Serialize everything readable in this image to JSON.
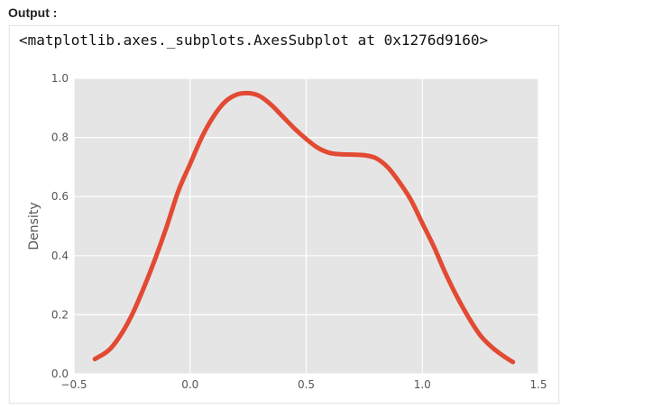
{
  "header": {
    "output_label": "Output :"
  },
  "cell": {
    "repr_text": "<matplotlib.axes._subplots.AxesSubplot at 0x1276d9160>"
  },
  "colors": {
    "plot_background": "#e5e5e5",
    "grid": "#ffffff",
    "line": "#e24a33",
    "tick_text": "#555555"
  },
  "chart_data": {
    "type": "line",
    "title": "",
    "xlabel": "",
    "ylabel": "Density",
    "xlim": [
      -0.5,
      1.5
    ],
    "ylim": [
      0.0,
      1.0
    ],
    "grid": true,
    "x_ticks": [
      -0.5,
      0.0,
      0.5,
      1.0,
      1.5
    ],
    "x_tick_labels": [
      "−0.5",
      "0.0",
      "0.5",
      "1.0",
      "1.5"
    ],
    "y_ticks": [
      0.0,
      0.2,
      0.4,
      0.6,
      0.8,
      1.0
    ],
    "y_tick_labels": [
      "0.0",
      "0.2",
      "0.4",
      "0.6",
      "0.8",
      "1.0"
    ],
    "series": [
      {
        "x": [
          -0.41,
          -0.35,
          -0.3,
          -0.25,
          -0.2,
          -0.15,
          -0.1,
          -0.05,
          0.0,
          0.05,
          0.1,
          0.15,
          0.2,
          0.25,
          0.3,
          0.35,
          0.4,
          0.45,
          0.5,
          0.55,
          0.6,
          0.65,
          0.7,
          0.75,
          0.8,
          0.85,
          0.9,
          0.95,
          1.0,
          1.05,
          1.1,
          1.15,
          1.2,
          1.25,
          1.3,
          1.35,
          1.39
        ],
        "y": [
          0.05,
          0.08,
          0.13,
          0.2,
          0.29,
          0.39,
          0.5,
          0.62,
          0.71,
          0.8,
          0.87,
          0.92,
          0.945,
          0.95,
          0.94,
          0.91,
          0.87,
          0.83,
          0.795,
          0.765,
          0.748,
          0.743,
          0.742,
          0.74,
          0.73,
          0.7,
          0.65,
          0.59,
          0.51,
          0.43,
          0.34,
          0.26,
          0.19,
          0.13,
          0.09,
          0.06,
          0.04
        ]
      }
    ]
  }
}
